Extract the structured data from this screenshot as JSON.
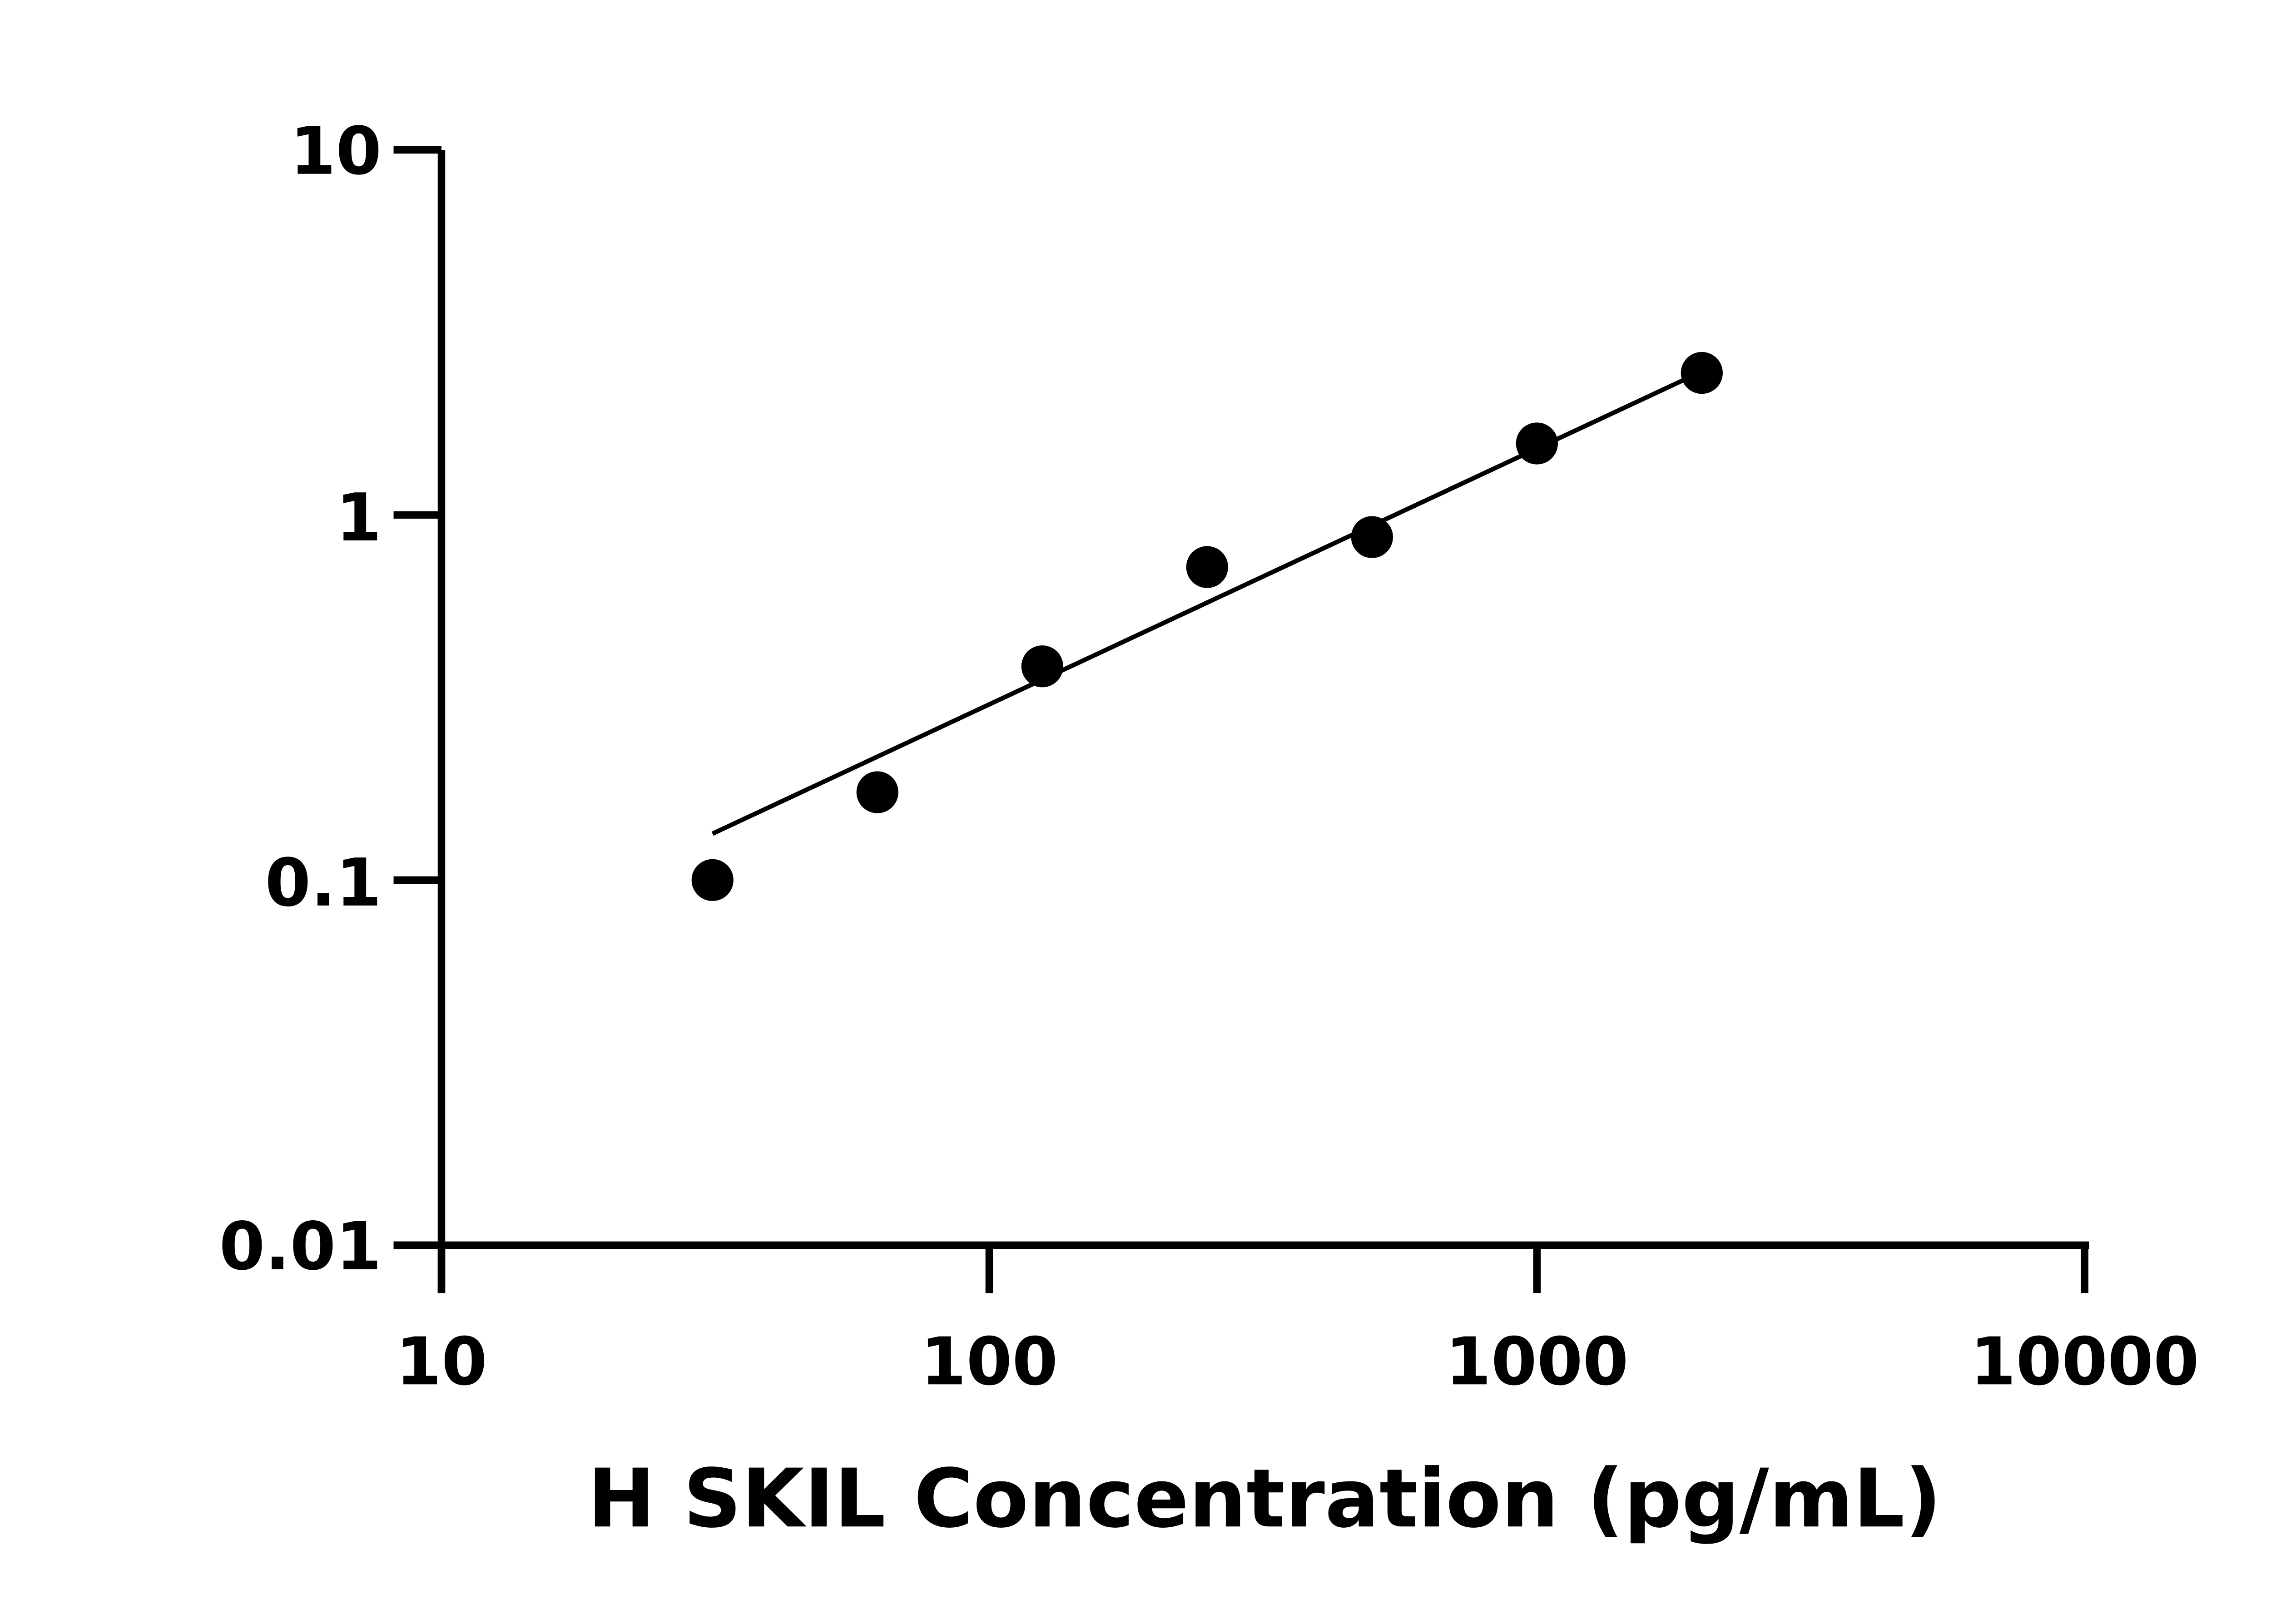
{
  "chart_data": {
    "type": "scatter",
    "title": "",
    "xlabel": "H SKIL Concentration (pg/mL)",
    "ylabel": "",
    "x_scale": "log",
    "y_scale": "log",
    "xlim": [
      10,
      10000
    ],
    "ylim": [
      0.01,
      10
    ],
    "x_ticks": [
      "10",
      "100",
      "1000",
      "10000"
    ],
    "y_ticks": [
      "0.01",
      "0.1",
      "1",
      "10"
    ],
    "grid": false,
    "legend": "none",
    "series": [
      {
        "x": [
          31.25,
          62.5,
          125,
          250,
          500,
          1000,
          2000
        ],
        "y": [
          0.1,
          0.174,
          0.385,
          0.72,
          0.87,
          1.57,
          2.45
        ],
        "marker": "circle",
        "color": "#000000"
      }
    ],
    "fit_line": {
      "x": [
        31.25,
        1850
      ],
      "y": [
        0.134,
        2.34
      ],
      "color": "#000000"
    }
  }
}
